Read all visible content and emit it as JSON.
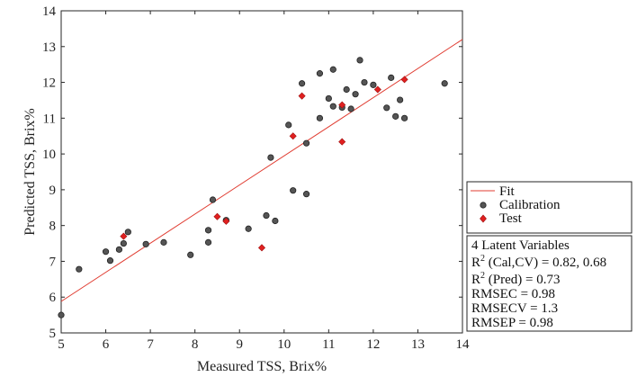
{
  "chart_data": {
    "type": "scatter",
    "xlabel": "Measured TSS, Brix%",
    "ylabel": "Predicted TSS, Brix%",
    "xlim": [
      5,
      14
    ],
    "ylim": [
      5,
      14
    ],
    "xticks": [
      "5",
      "6",
      "7",
      "8",
      "9",
      "10",
      "11",
      "12",
      "13",
      "14"
    ],
    "yticks": [
      "5",
      "6",
      "7",
      "8",
      "9",
      "10",
      "11",
      "12",
      "13",
      "14"
    ],
    "grid": false,
    "legend_position": "outside-right",
    "fit": {
      "name": "Fit",
      "x": [
        5,
        14
      ],
      "y": [
        5.88,
        13.2
      ],
      "color": "#e03c31"
    },
    "series": [
      {
        "name": "Calibration",
        "marker": "circle",
        "color": "#555555",
        "x": [
          5.0,
          5.4,
          6.0,
          6.1,
          6.3,
          6.4,
          6.5,
          6.9,
          7.3,
          7.9,
          8.3,
          8.3,
          8.4,
          8.7,
          9.2,
          9.6,
          9.7,
          9.8,
          10.1,
          10.2,
          10.4,
          10.5,
          10.5,
          10.8,
          10.8,
          11.0,
          11.1,
          11.1,
          11.3,
          11.4,
          11.5,
          11.6,
          11.7,
          11.8,
          12.0,
          12.3,
          12.4,
          12.5,
          12.6,
          12.7,
          13.6
        ],
        "y": [
          5.5,
          6.78,
          7.27,
          7.02,
          7.33,
          7.5,
          7.82,
          7.48,
          7.53,
          7.18,
          7.53,
          7.87,
          8.72,
          8.15,
          7.91,
          8.28,
          9.9,
          8.13,
          10.81,
          8.98,
          11.97,
          8.88,
          10.3,
          11.0,
          12.25,
          11.55,
          11.33,
          12.36,
          11.3,
          11.8,
          11.26,
          11.67,
          12.62,
          12.0,
          11.93,
          11.29,
          12.13,
          11.05,
          11.51,
          11.0,
          11.97
        ]
      },
      {
        "name": "Test",
        "marker": "diamond",
        "color": "#e02020",
        "x": [
          6.4,
          8.5,
          8.7,
          9.5,
          10.2,
          10.4,
          11.3,
          11.3,
          12.1,
          12.7
        ],
        "y": [
          7.7,
          8.25,
          8.12,
          7.38,
          10.5,
          11.62,
          11.37,
          10.34,
          11.8,
          12.08
        ]
      }
    ],
    "stats": [
      {
        "text": "4 Latent Variables"
      },
      {
        "prefix": "R",
        "sup": "2",
        "rest": " (Cal,CV) = 0.82, 0.68"
      },
      {
        "prefix": "R",
        "sup": "2",
        "rest": " (Pred) = 0.73"
      },
      {
        "text": "RMSEC = 0.98"
      },
      {
        "text": "RMSECV = 1.3"
      },
      {
        "text": "RMSEP = 0.98"
      }
    ]
  }
}
